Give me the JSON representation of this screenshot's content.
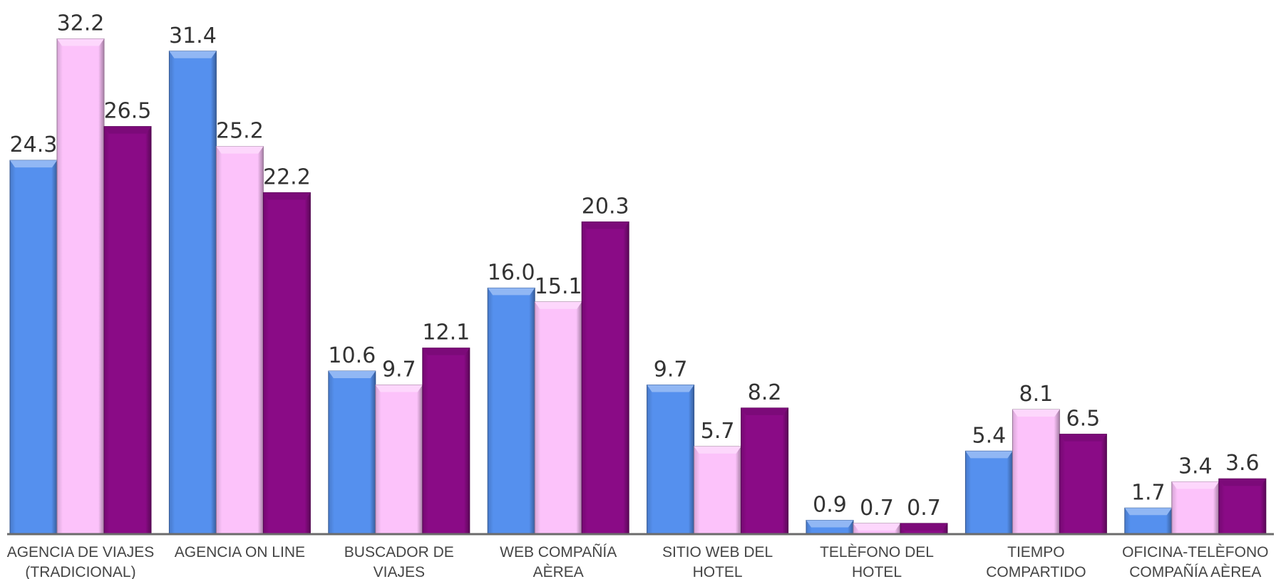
{
  "chart_data": {
    "type": "bar",
    "title": "",
    "xlabel": "",
    "ylabel": "",
    "grid": false,
    "ylim": [
      0,
      34
    ],
    "categories": [
      [
        "AGENCIA DE VIAJES",
        "(TRADICIONAL)"
      ],
      [
        "AGENCIA ON LINE"
      ],
      [
        "BUSCADOR DE",
        "VIAJES"
      ],
      [
        "WEB COMPAÑÍA",
        "AÈREA"
      ],
      [
        "SITIO WEB DEL",
        "HOTEL"
      ],
      [
        "TELÈFONO DEL",
        "HOTEL"
      ],
      [
        "TIEMPO",
        "COMPARTIDO"
      ],
      [
        "OFICINA-TELÈFONO",
        "COMPAÑÍA AÈREA"
      ]
    ],
    "series": [
      {
        "color": "#5590ee",
        "values": [
          24.3,
          31.4,
          10.6,
          16.0,
          9.7,
          0.9,
          5.4,
          1.7
        ],
        "labels": [
          "24.3",
          "31.4",
          "10.6",
          "16.0",
          "9.7",
          "0.9",
          "5.4",
          "1.7"
        ]
      },
      {
        "color": "#fcc2fa",
        "values": [
          32.2,
          25.2,
          9.7,
          15.1,
          5.7,
          0.7,
          8.1,
          3.4
        ],
        "labels": [
          "32.2",
          "25.2",
          "9.7",
          "15.1",
          "5.7",
          "0.7",
          "8.1",
          "3.4"
        ]
      },
      {
        "color": "#8a0b86",
        "values": [
          26.5,
          22.2,
          12.1,
          20.3,
          8.2,
          0.7,
          6.5,
          3.6
        ],
        "labels": [
          "26.5",
          "22.2",
          "12.1",
          "20.3",
          "8.2",
          "0.7",
          "6.5",
          "3.6"
        ]
      }
    ]
  }
}
